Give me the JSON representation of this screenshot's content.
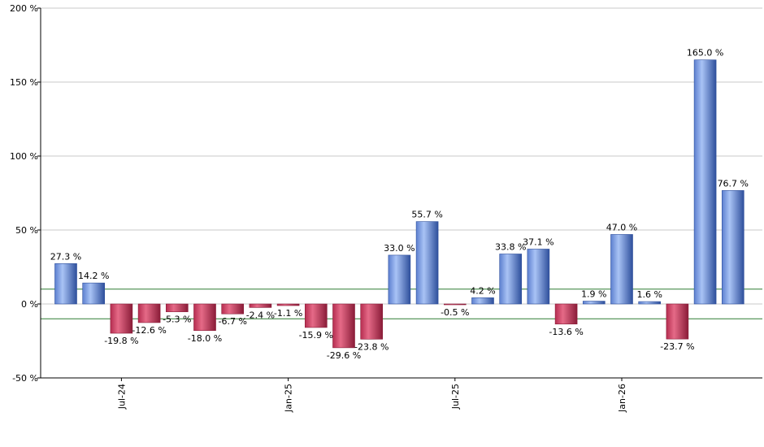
{
  "chart_data": {
    "type": "bar",
    "title": "",
    "xlabel": "",
    "ylabel": "",
    "ylim": [
      -50,
      200
    ],
    "yticks": [
      200,
      150,
      100,
      50,
      0,
      -50
    ],
    "ytick_labels": [
      "200 %",
      "150 %",
      "100 %",
      "50 %",
      "0 %",
      "-50 %"
    ],
    "xtick_labels": [
      {
        "label": "Jul-24",
        "index": 2
      },
      {
        "label": "Jan-25",
        "index": 8
      },
      {
        "label": "Jul-25",
        "index": 14
      },
      {
        "label": "Jan-26",
        "index": 20
      }
    ],
    "reference_lines": [
      10,
      -10
    ],
    "grid": "horizontal",
    "legend": "none",
    "colors": {
      "positive": "#7da0e6",
      "positive_dark": "#2e4f9c",
      "negative": "#d9476a",
      "negative_dark": "#8a1c38",
      "reference_line": "#2e7d32",
      "grid": "#c8c8c8"
    },
    "values": [
      27.3,
      14.2,
      -19.8,
      -12.6,
      -5.3,
      -18.0,
      -6.7,
      -2.4,
      -1.1,
      -15.9,
      -29.6,
      -23.8,
      33.0,
      55.7,
      -0.5,
      4.2,
      33.8,
      37.1,
      -13.6,
      1.9,
      47.0,
      1.6,
      -23.7,
      165.0,
      76.7
    ],
    "labels": [
      "27.3 %",
      "14.2 %",
      "-19.8 %",
      "-12.6 %",
      "-5.3 %",
      "-18.0 %",
      "-6.7 %",
      "-2.4 %",
      "-1.1 %",
      "-15.9 %",
      "-29.6 %",
      "-23.8 %",
      "33.0 %",
      "55.7 %",
      "-0.5 %",
      "4.2 %",
      "33.8 %",
      "37.1 %",
      "-13.6 %",
      "1.9 %",
      "47.0 %",
      "1.6 %",
      "-23.7 %",
      "165.0 %",
      "76.7 %"
    ]
  }
}
